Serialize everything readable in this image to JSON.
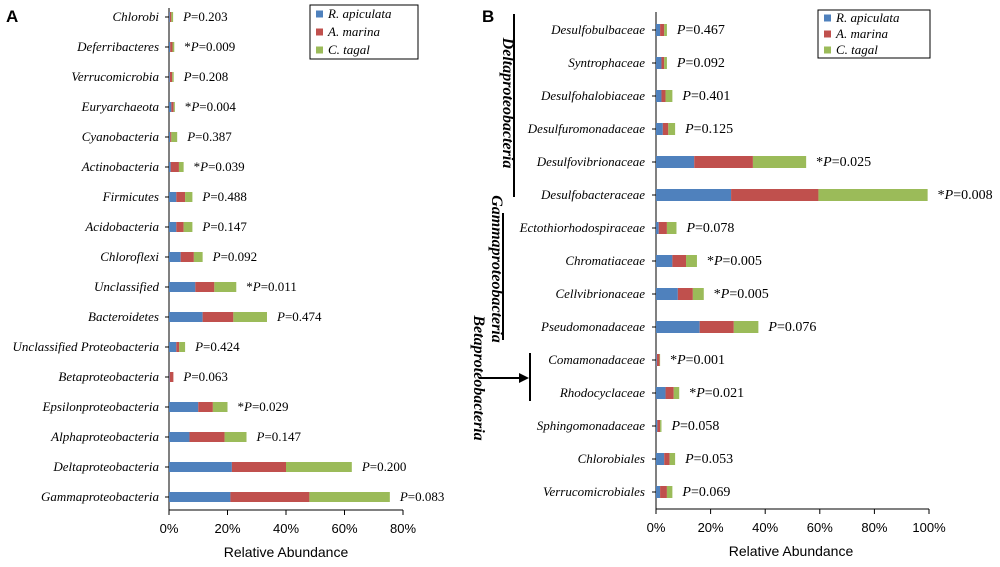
{
  "chart_data": [
    {
      "type": "bar",
      "orientation": "horizontal",
      "stacked": true,
      "panel": "A",
      "categories": [
        "Chlorobi",
        "Deferribacteres",
        "Verrucomicrobia",
        "Euryarchaeota",
        "Cyanobacteria",
        "Actinobacteria",
        "Firmicutes",
        "Acidobacteria",
        "Chloroflexi",
        "Unclassified",
        "Bacteroidetes",
        "Unclassified Proteobacteria",
        "Betaproteobacteria",
        "Epsilonproteobacteria",
        "Alphaproteobacteria",
        "Deltaproteobacteria",
        "Gammaproteobacteria"
      ],
      "p_values": [
        "P=0.203",
        "*P=0.009",
        "P=0.208",
        "*P=0.004",
        "P=0.387",
        "*P=0.039",
        "P=0.488",
        "P=0.147",
        "P=0.092",
        "*P=0.011",
        "P=0.474",
        "P=0.424",
        "P=0.063",
        "*P=0.029",
        "P=0.147",
        "P=0.200",
        "P=0.083"
      ],
      "series": [
        {
          "name": "R. apiculata",
          "color": "#4F81BD",
          "values": [
            0.3,
            0.4,
            0.3,
            0.8,
            0.4,
            0.6,
            2.5,
            2.5,
            4.0,
            9.0,
            11.5,
            2.5,
            0.2,
            10.0,
            7.0,
            21.5,
            21.0
          ]
        },
        {
          "name": "A. marina",
          "color": "#C0504D",
          "values": [
            0.5,
            0.8,
            0.8,
            0.8,
            0.4,
            2.8,
            3.0,
            2.5,
            4.5,
            6.5,
            10.5,
            1.0,
            1.3,
            5.0,
            12.0,
            18.5,
            27.0
          ]
        },
        {
          "name": "C. tagal",
          "color": "#9BBB59",
          "values": [
            0.6,
            0.6,
            0.5,
            0.4,
            2.0,
            1.6,
            2.5,
            3.0,
            3.0,
            7.5,
            11.5,
            2.0,
            0.0,
            5.0,
            7.5,
            22.5,
            27.5
          ]
        }
      ],
      "xlabel": "Relative Abundance",
      "ylabel": "",
      "xlim": [
        0,
        80
      ],
      "xticks": [
        "0%",
        "20%",
        "40%",
        "60%",
        "80%"
      ]
    },
    {
      "type": "bar",
      "orientation": "horizontal",
      "stacked": true,
      "panel": "B",
      "categories": [
        "Desulfobulbaceae",
        "Syntrophaceae",
        "Desulfohalobiaceae",
        "Desulfuromonadaceae",
        "Desulfovibrionaceae",
        "Desulfobacteraceae",
        "Ectothiorhodospiraceae",
        "Chromatiaceae",
        "Cellvibrionaceae",
        "Pseudomonadaceae",
        "Comamonadaceae",
        "Rhodocyclaceae",
        "Sphingomonadaceae",
        "Chlorobiales",
        "Verrucomicrobiales"
      ],
      "p_values": [
        "P=0.467",
        "P=0.092",
        "P=0.401",
        "P=0.125",
        "*P=0.025",
        "*P=0.008",
        "P=0.078",
        "*P=0.005",
        "*P=0.005",
        "P=0.076",
        "*P=0.001",
        "*P=0.021",
        "P=0.058",
        "P=0.053",
        "P=0.069"
      ],
      "series": [
        {
          "name": "R. apiculata",
          "color": "#4F81BD",
          "values": [
            1.5,
            2.0,
            2.0,
            2.5,
            14.0,
            27.5,
            1.0,
            6.0,
            8.0,
            16.0,
            0.3,
            3.5,
            0.5,
            3.0,
            1.5
          ]
        },
        {
          "name": "A. marina",
          "color": "#C0504D",
          "values": [
            1.5,
            1.0,
            1.5,
            2.0,
            21.5,
            32.0,
            3.0,
            5.0,
            5.5,
            12.5,
            1.0,
            3.0,
            1.0,
            2.0,
            2.5
          ]
        },
        {
          "name": "C. tagal",
          "color": "#9BBB59",
          "values": [
            1.0,
            1.0,
            2.5,
            2.5,
            19.5,
            40.0,
            3.5,
            4.0,
            4.0,
            9.0,
            0.2,
            2.0,
            0.5,
            2.0,
            2.0
          ]
        }
      ],
      "groups": [
        {
          "label": "Deltaproteobacteria",
          "from": 0,
          "to": 5
        },
        {
          "label": "Gammaproteobacteria",
          "from": 6,
          "to": 9
        },
        {
          "label": "Betaproteobacteria",
          "from": 10,
          "to": 11
        }
      ],
      "xlabel": "Relative Abundance",
      "ylabel": "",
      "xlim": [
        0,
        100
      ],
      "xticks": [
        "0%",
        "20%",
        "40%",
        "60%",
        "80%",
        "100%"
      ]
    }
  ]
}
